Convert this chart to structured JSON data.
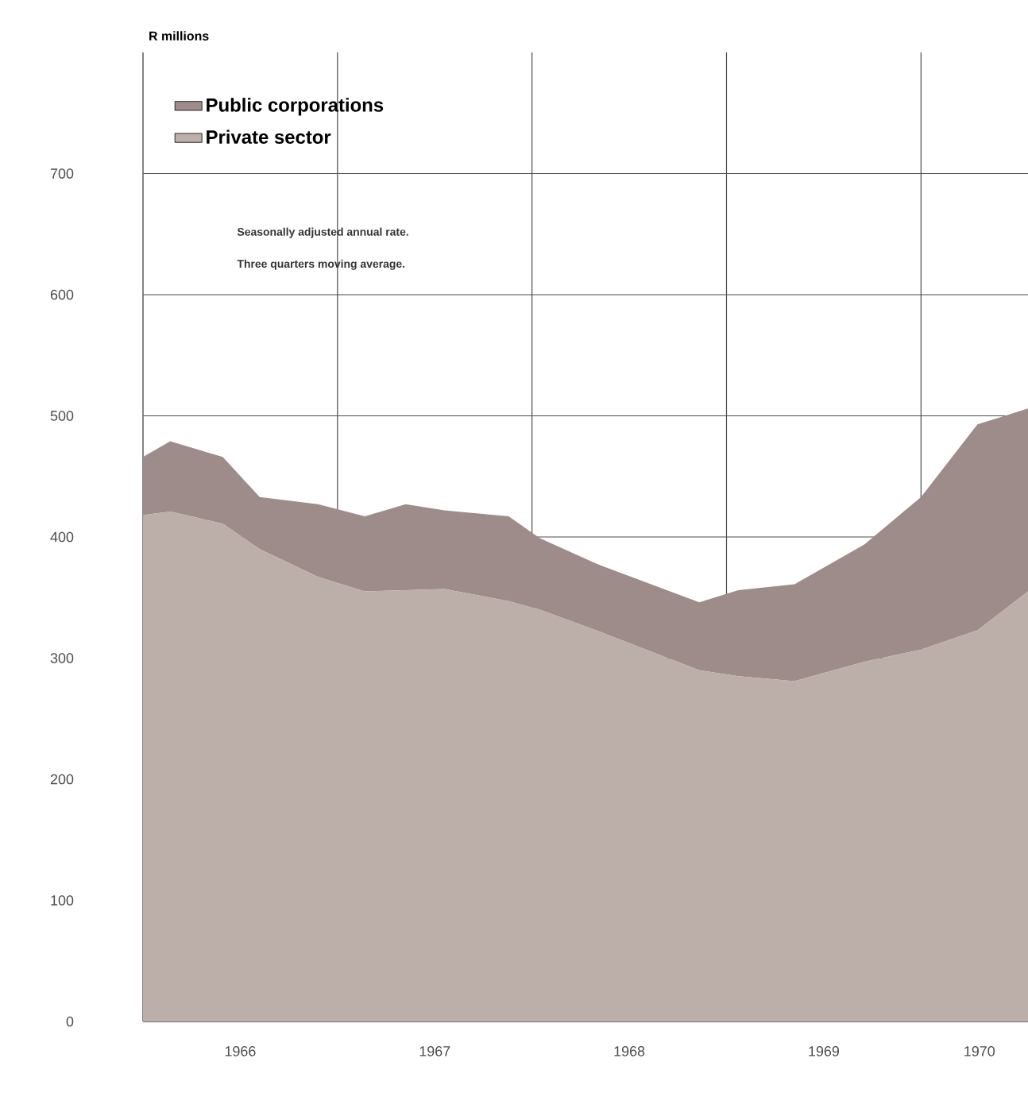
{
  "chart_data": {
    "type": "area",
    "stacked": true,
    "ylabel": "R millions",
    "x": [
      1966.0,
      1966.14,
      1966.41,
      1966.6,
      1966.9,
      1967.14,
      1967.35,
      1967.55,
      1967.88,
      1968.04,
      1968.33,
      1968.86,
      1969.06,
      1969.35,
      1969.71,
      1970.0,
      1970.29,
      1970.55
    ],
    "series": [
      {
        "name": "Private sector",
        "color": "#bcaea8",
        "values": [
          418,
          421,
          411,
          390,
          367,
          355,
          356,
          357,
          347,
          340,
          323,
          290,
          285,
          281,
          297,
          307,
          323,
          355
        ]
      },
      {
        "name": "Public corporations",
        "color": "#9e8c8a",
        "values": [
          48,
          58,
          55,
          43,
          60,
          62,
          71,
          65,
          70,
          59,
          55,
          56,
          71,
          80,
          97,
          126,
          170,
          151
        ]
      }
    ],
    "xlim": [
      1966.0,
      1970.55
    ],
    "ylim": [
      0,
      800
    ],
    "xticks": [
      {
        "value": 1967,
        "label": null
      },
      {
        "value": 1968,
        "label": null
      },
      {
        "value": 1969,
        "label": null
      },
      {
        "value": 1970,
        "label": null
      },
      {
        "value": 1966.5,
        "label": "1966"
      },
      {
        "value": 1967.5,
        "label": "1967"
      },
      {
        "value": 1968.5,
        "label": "1968"
      },
      {
        "value": 1969.5,
        "label": "1969"
      },
      {
        "value": 1970.3,
        "label": "1970"
      }
    ],
    "yticks": [
      0,
      100,
      200,
      300,
      400,
      500,
      600,
      700
    ],
    "grid": true,
    "legend": "top left",
    "annotations": [
      "Seasonally adjusted annual rate.",
      "Three quarters moving average."
    ]
  }
}
